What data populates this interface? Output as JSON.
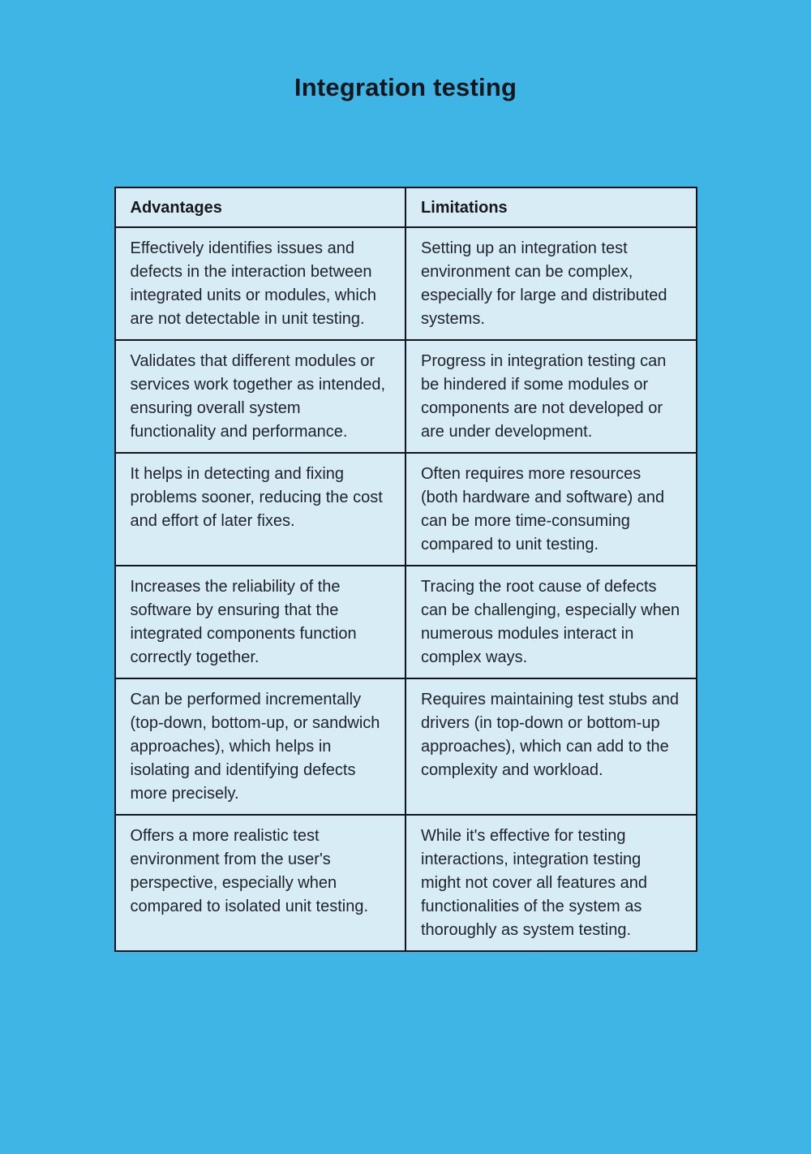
{
  "title": "Integration testing",
  "colors": {
    "background": "#3eb5e4",
    "cell_background": "#d8ecf6",
    "border": "#14141e",
    "text": "#1e222b",
    "title_text": "#14171d"
  },
  "table": {
    "headers": [
      "Advantages",
      "Limitations"
    ],
    "rows": [
      {
        "advantage": "Effectively identifies issues and defects in the interaction between integrated units or modules, which are not detectable in unit testing.",
        "limitation": "Setting up an integration test environment can be complex, especially for large and distributed systems."
      },
      {
        "advantage": "Validates that different modules or services work together as intended, ensuring overall system functionality and performance.",
        "limitation": "Progress in integration testing can be hindered if some modules or components are not developed or are under development."
      },
      {
        "advantage": "It helps in detecting and fixing problems sooner, reducing the cost and effort of later fixes.",
        "limitation": "Often requires more resources (both hardware and software) and can be more time-consuming compared to unit testing."
      },
      {
        "advantage": "Increases the reliability of the software by ensuring that the integrated components function correctly together.",
        "limitation": "Tracing the root cause of defects can be challenging, especially when numerous modules interact in complex ways."
      },
      {
        "advantage": "Can be performed incrementally (top-down, bottom-up, or sandwich approaches), which helps in isolating and identifying defects more precisely.",
        "limitation": "Requires maintaining test stubs and drivers (in top-down or bottom-up approaches), which can add to the complexity and workload."
      },
      {
        "advantage": "Offers a more realistic test environment from the user's perspective, especially when compared to isolated unit testing.",
        "limitation": "While it's effective for testing interactions, integration testing might not cover all features and functionalities of the system as thoroughly as system testing."
      }
    ]
  }
}
